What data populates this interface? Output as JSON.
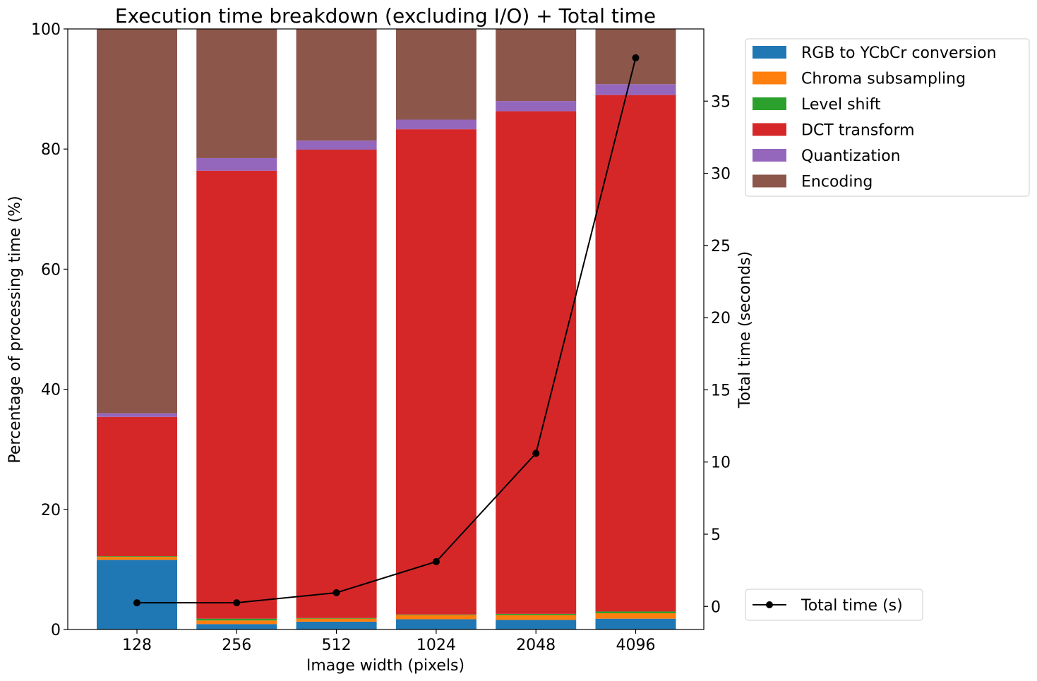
{
  "chart_data": {
    "type": "bar",
    "stacked": true,
    "title": "Execution time breakdown (excluding I/O) + Total time",
    "xlabel": "Image width (pixels)",
    "ylabel": "Percentage of processing time (%)",
    "y2label": "Total time (seconds)",
    "categories": [
      "128",
      "256",
      "512",
      "1024",
      "2048",
      "4096"
    ],
    "ylim": [
      0,
      100
    ],
    "yticks": [
      0,
      20,
      40,
      60,
      80,
      100
    ],
    "y2lim": [
      -1.6,
      40
    ],
    "y2ticks": [
      0,
      5,
      10,
      15,
      20,
      25,
      30,
      35
    ],
    "series": [
      {
        "name": "RGB to YCbCr conversion",
        "color": "#1f77b4",
        "values": [
          11.6,
          0.9,
          1.3,
          1.7,
          1.6,
          1.8
        ]
      },
      {
        "name": "Chroma subsampling",
        "color": "#ff7f0e",
        "values": [
          0.5,
          0.6,
          0.5,
          0.7,
          0.8,
          0.9
        ]
      },
      {
        "name": "Level shift",
        "color": "#2ca02c",
        "values": [
          0.1,
          0.3,
          0.1,
          0.1,
          0.2,
          0.3
        ]
      },
      {
        "name": "DCT transform",
        "color": "#d62728",
        "values": [
          23.2,
          74.6,
          78.0,
          80.8,
          83.7,
          86.0
        ]
      },
      {
        "name": "Quantization",
        "color": "#9467bd",
        "values": [
          0.6,
          2.1,
          1.5,
          1.6,
          1.7,
          1.8
        ]
      },
      {
        "name": "Encoding",
        "color": "#8c564b",
        "values": [
          64.0,
          21.5,
          18.6,
          15.1,
          12.0,
          9.2
        ]
      }
    ],
    "line": {
      "name": "Total time (s)",
      "color": "#000000",
      "axis": "right",
      "values": [
        0.25,
        0.25,
        0.95,
        3.1,
        10.6,
        38.0
      ]
    },
    "legend_position": "outside-right"
  }
}
